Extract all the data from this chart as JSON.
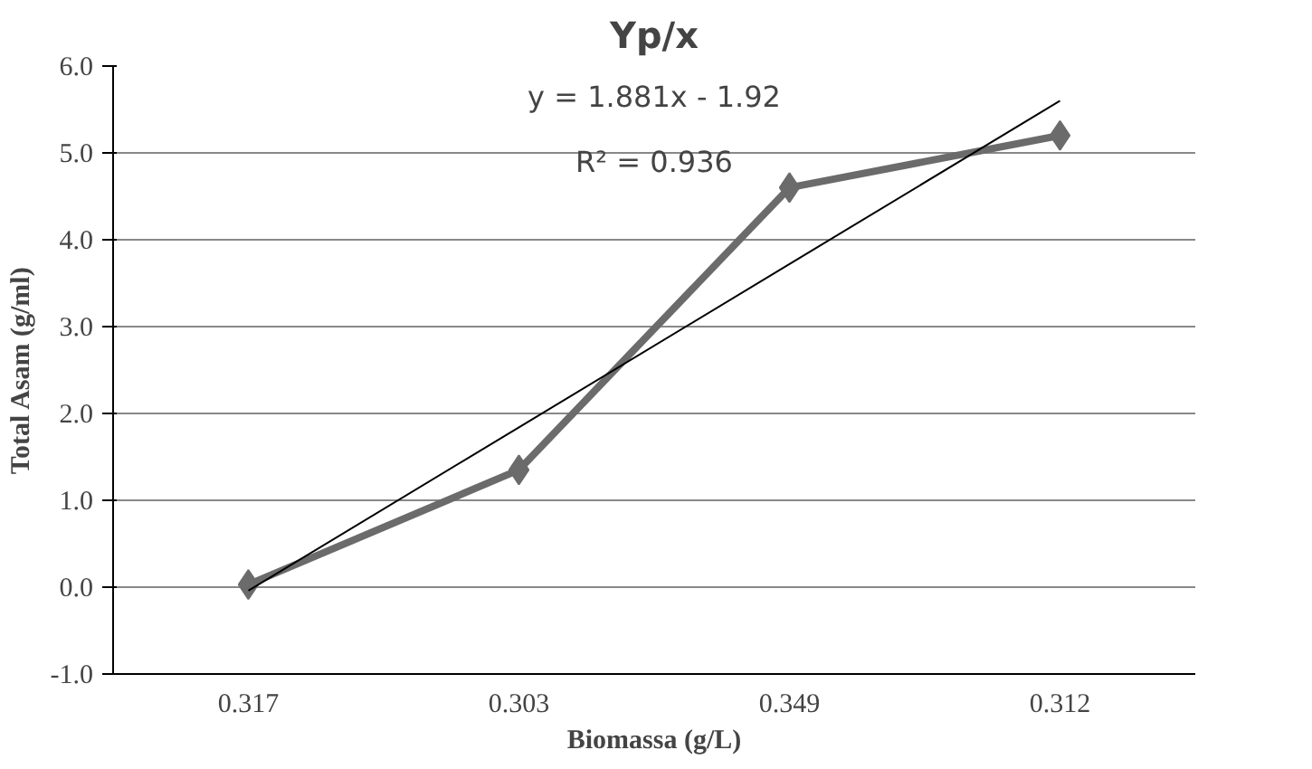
{
  "chart_data": {
    "type": "line",
    "title": "Yp/x",
    "xlabel": "Biomassa (g/L)",
    "ylabel": "Total Asam (g/ml)",
    "categories": [
      "0.317",
      "0.303",
      "0.349",
      "0.312"
    ],
    "series": [
      {
        "color": "#6b6b6b",
        "values": [
          0.03,
          1.35,
          4.6,
          5.2
        ],
        "marker": "diamond",
        "line_style": "solid"
      },
      {
        "color": "#000000",
        "values": [
          -0.04,
          1.84,
          3.72,
          5.6
        ],
        "x": [
          "0.317",
          "0.303",
          "0.349",
          "0.312"
        ],
        "marker": "none",
        "line_style": "solid"
      }
    ],
    "ylim": [
      -1,
      6
    ],
    "yticks": [
      {
        "value": -1,
        "label": "-1.0"
      },
      {
        "value": 0,
        "label": "0.0"
      },
      {
        "value": 1,
        "label": "1.0"
      },
      {
        "value": 2,
        "label": "2.0"
      },
      {
        "value": 3,
        "label": "3.0"
      },
      {
        "value": 4,
        "label": "4.0"
      },
      {
        "value": 5,
        "label": "5.0"
      },
      {
        "value": 6,
        "label": "6.0"
      }
    ],
    "grid": "y",
    "annotations": [
      "y = 1.881x - 1.92",
      "R² = 0.936"
    ]
  }
}
